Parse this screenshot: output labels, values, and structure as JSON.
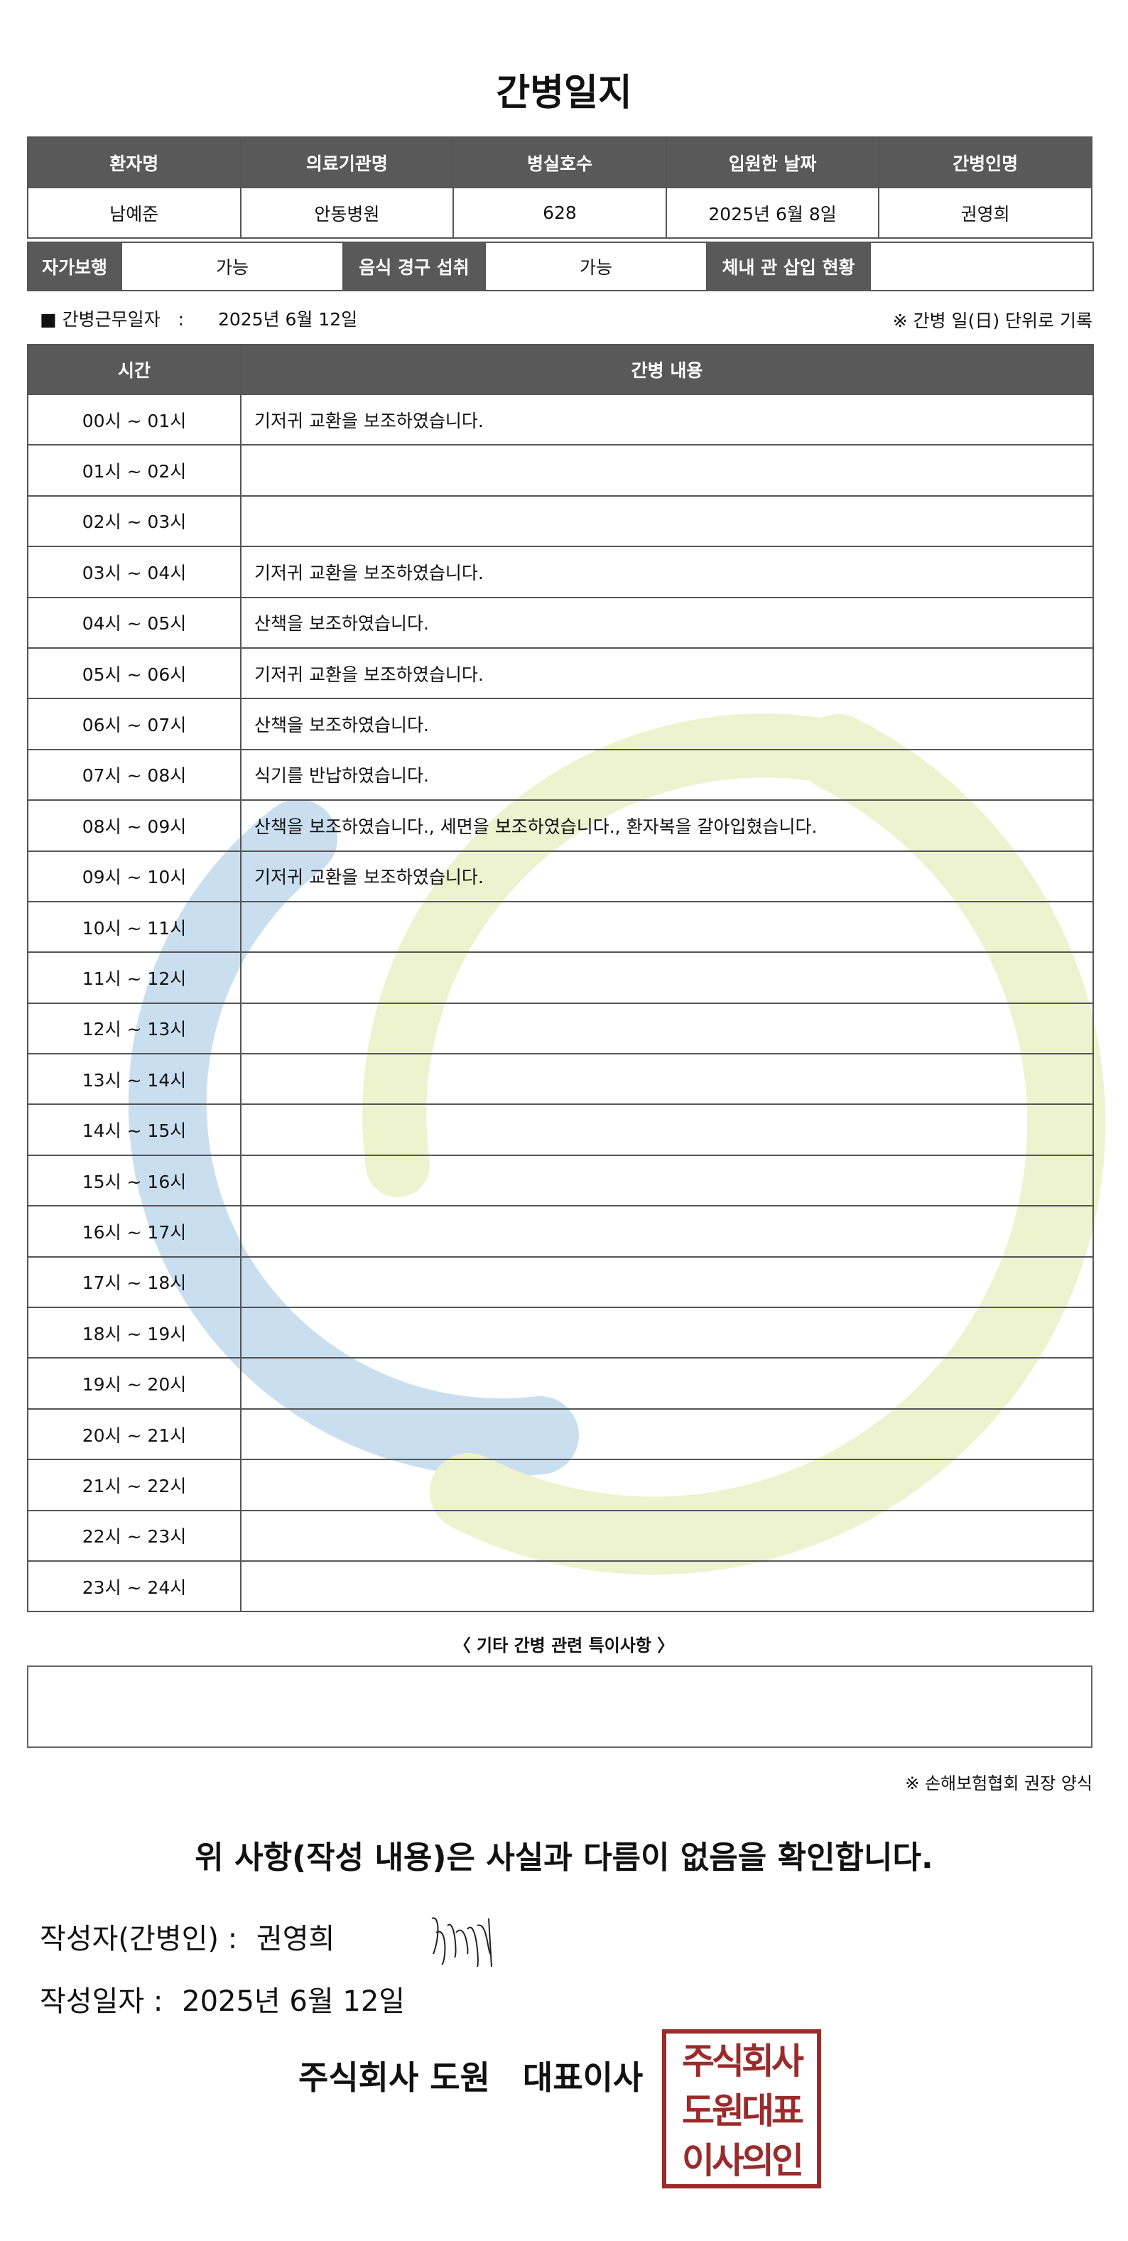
{
  "title": "간병일지",
  "info": {
    "headers": [
      "환자명",
      "의료기관명",
      "병실호수",
      "입원한 날짜",
      "간병인명"
    ],
    "values": [
      "남예준",
      "안동병원",
      "628",
      "2025년 6월 8일",
      "권영희"
    ]
  },
  "status": {
    "walk_label": "자가보행",
    "walk_value": "가능",
    "oral_label": "음식 경구 섭취",
    "oral_value": "가능",
    "tube_label": "체내 관 삽입 현황",
    "tube_value": ""
  },
  "work_date_label": "■ 간병근무일자　:",
  "work_date": "2025년 6월 12일",
  "unit_note": "※ 간병 일(日) 단위로 기록",
  "log": {
    "headers": [
      "시간",
      "간병 내용"
    ],
    "rows": [
      {
        "time": "00시 ~ 01시",
        "content": "기저귀 교환을 보조하였습니다."
      },
      {
        "time": "01시 ~ 02시",
        "content": ""
      },
      {
        "time": "02시 ~ 03시",
        "content": ""
      },
      {
        "time": "03시 ~ 04시",
        "content": "기저귀 교환을 보조하였습니다."
      },
      {
        "time": "04시 ~ 05시",
        "content": "산책을 보조하였습니다."
      },
      {
        "time": "05시 ~ 06시",
        "content": "기저귀 교환을 보조하였습니다."
      },
      {
        "time": "06시 ~ 07시",
        "content": "산책을 보조하였습니다."
      },
      {
        "time": "07시 ~ 08시",
        "content": "식기를 반납하였습니다."
      },
      {
        "time": "08시 ~ 09시",
        "content": "산책을 보조하였습니다., 세면을 보조하였습니다., 환자복을 갈아입혔습니다."
      },
      {
        "time": "09시 ~ 10시",
        "content": "기저귀 교환을 보조하였습니다."
      },
      {
        "time": "10시 ~ 11시",
        "content": ""
      },
      {
        "time": "11시 ~ 12시",
        "content": ""
      },
      {
        "time": "12시 ~ 13시",
        "content": ""
      },
      {
        "time": "13시 ~ 14시",
        "content": ""
      },
      {
        "time": "14시 ~ 15시",
        "content": ""
      },
      {
        "time": "15시 ~ 16시",
        "content": ""
      },
      {
        "time": "16시 ~ 17시",
        "content": ""
      },
      {
        "time": "17시 ~ 18시",
        "content": ""
      },
      {
        "time": "18시 ~ 19시",
        "content": ""
      },
      {
        "time": "19시 ~ 20시",
        "content": ""
      },
      {
        "time": "20시 ~ 21시",
        "content": ""
      },
      {
        "time": "21시 ~ 22시",
        "content": ""
      },
      {
        "time": "22시 ~ 23시",
        "content": ""
      },
      {
        "time": "23시 ~ 24시",
        "content": ""
      }
    ]
  },
  "remarks_title": "〈 기타 간병 관련 특이사항 〉",
  "remarks": "",
  "form_note": "※ 손해보험협회 권장 양식",
  "confirm": "위 사항(작성 내용)은 사실과 다름이 없음을 확인합니다.",
  "writer_label": "작성자(간병인) :",
  "writer": "권영희",
  "write_date_label": "작성일자 :",
  "write_date": "2025년 6월 12일",
  "company": "주식회사 도원　대표이사",
  "seal_text": "주식회사 도원대표 이사의인",
  "colors": {
    "header_bg": "#595959",
    "seal": "#9b2b2b",
    "watermark_blue": "#c9dff0",
    "watermark_green": "#eef3cf"
  }
}
